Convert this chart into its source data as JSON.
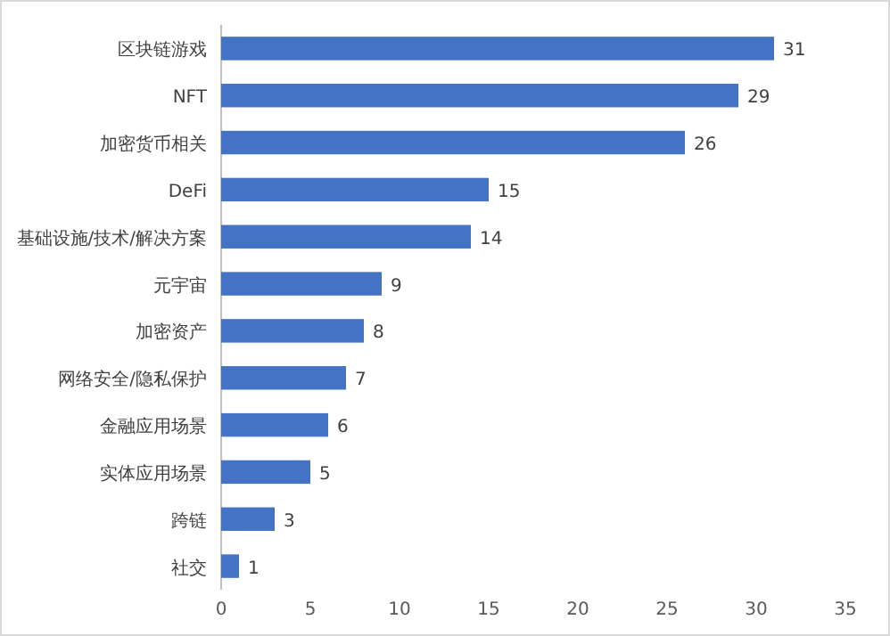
{
  "chart_data": {
    "type": "bar",
    "orientation": "horizontal",
    "categories": [
      "区块链游戏",
      "NFT",
      "加密货币相关",
      "DeFi",
      "基础设施/技术/解决方案",
      "元宇宙",
      "加密资产",
      "网络安全/隐私保护",
      "金融应用场景",
      "实体应用场景",
      "跨链",
      "社交"
    ],
    "values": [
      31,
      29,
      26,
      15,
      14,
      9,
      8,
      7,
      6,
      5,
      3,
      1
    ],
    "color": "#4472c4",
    "xlim": [
      0,
      35
    ],
    "xticks": [
      0,
      5,
      10,
      15,
      20,
      25,
      30,
      35
    ],
    "data_labels": true
  }
}
